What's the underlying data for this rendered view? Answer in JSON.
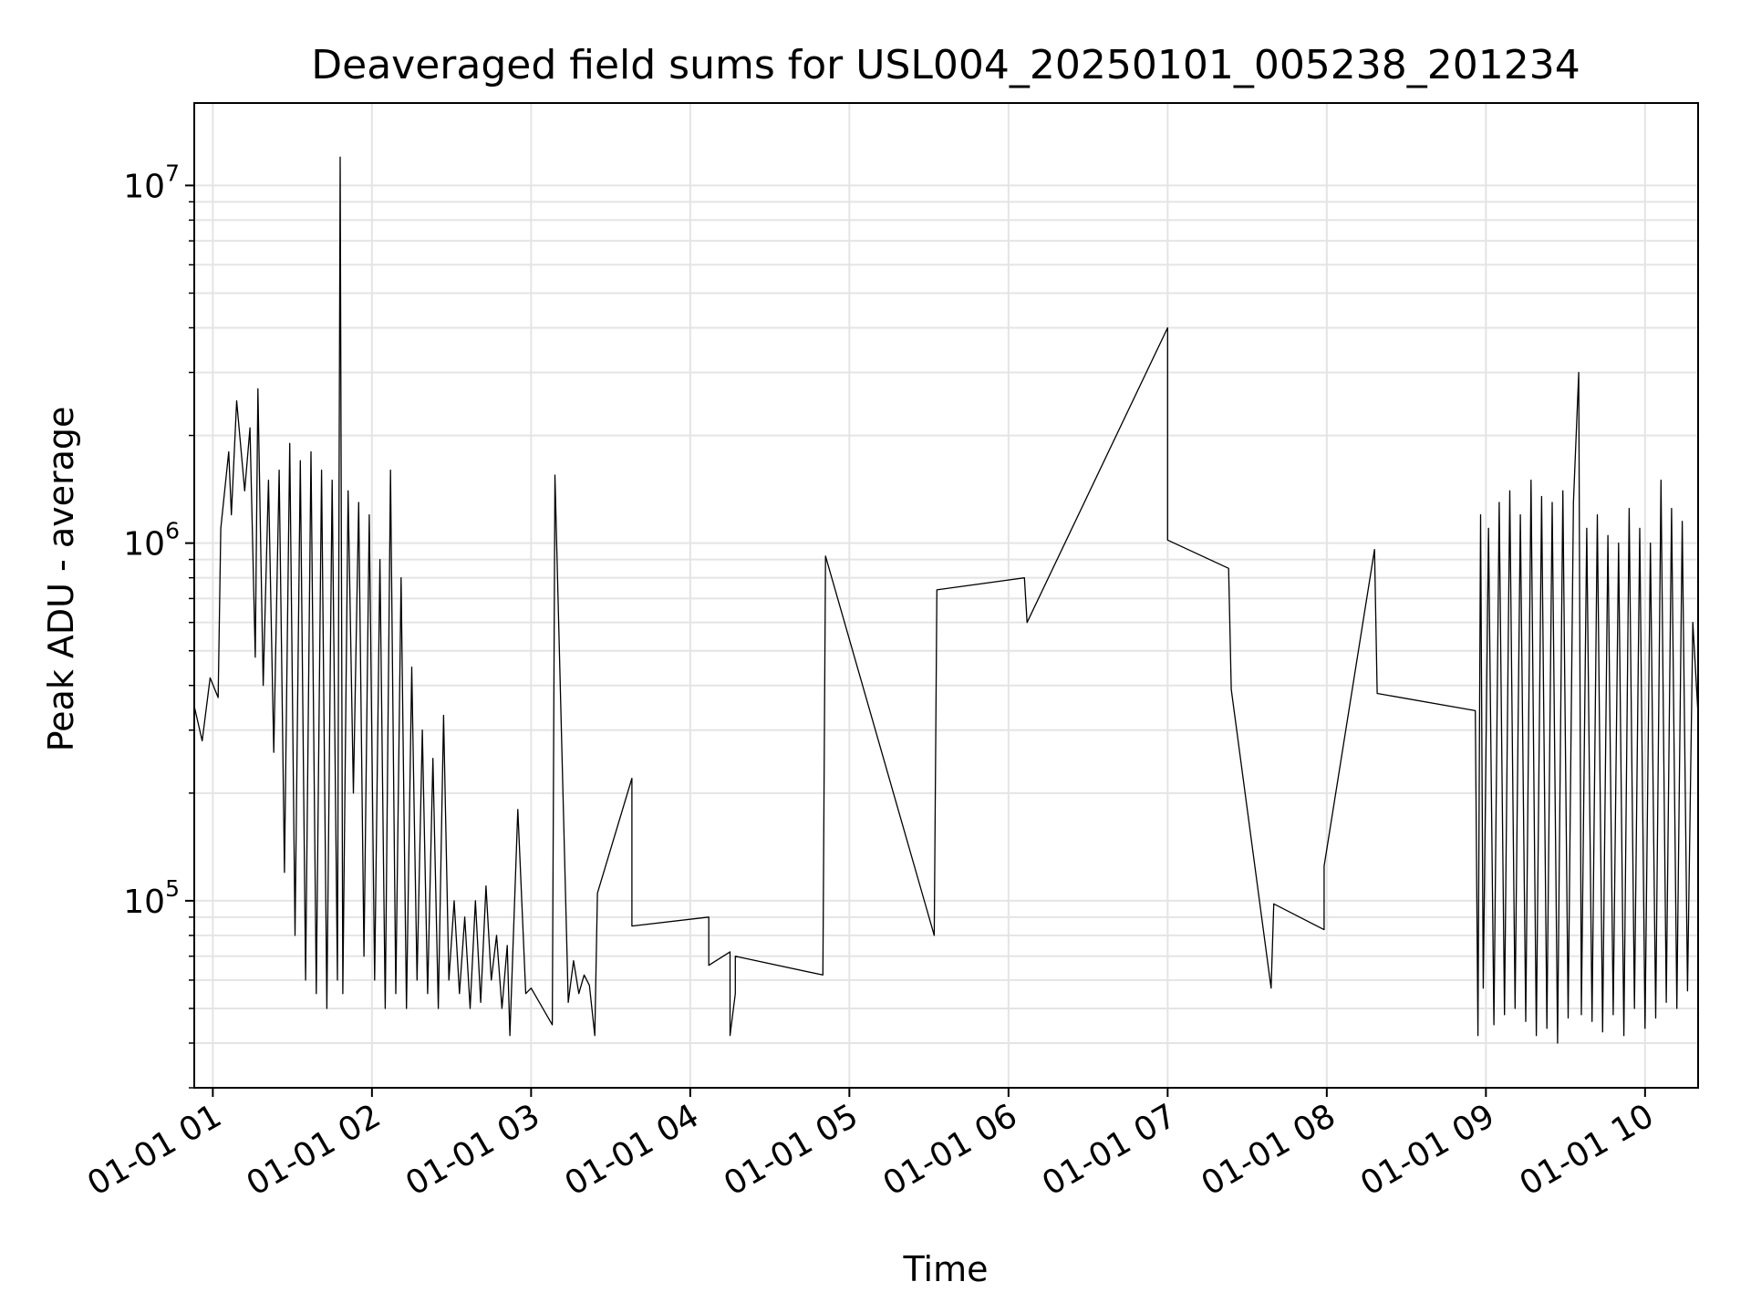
{
  "chart_data": {
    "type": "line",
    "title": "Deaveraged field sums for USL004_20250101_005238_201234",
    "xlabel": "Time",
    "ylabel": "Peak ADU - average",
    "y_scale": "log",
    "grid": true,
    "xlim": [
      "2025-01-01 00:53",
      "2025-01-01 10:20"
    ],
    "ylim": [
      30000,
      17000000
    ],
    "x_ticks": [
      "01-01 01",
      "01-01 02",
      "01-01 03",
      "01-01 04",
      "01-01 05",
      "01-01 06",
      "01-01 07",
      "01-01 08",
      "01-01 09",
      "01-01 10"
    ],
    "y_ticks": [
      {
        "base": "10",
        "exp": "5",
        "value": 100000
      },
      {
        "base": "10",
        "exp": "6",
        "value": 1000000
      },
      {
        "base": "10",
        "exp": "7",
        "value": 10000000
      }
    ],
    "line_color": "#000000",
    "series": [
      {
        "x": [
          "2025-01-01 00:53",
          "2025-01-01 00:56",
          "2025-01-01 00:59",
          "2025-01-01 01:02",
          "2025-01-01 01:03",
          "2025-01-01 01:06",
          "2025-01-01 01:07",
          "2025-01-01 01:09",
          "2025-01-01 01:12",
          "2025-01-01 01:14",
          "2025-01-01 01:16",
          "2025-01-01 01:17",
          "2025-01-01 01:19",
          "2025-01-01 01:21",
          "2025-01-01 01:23",
          "2025-01-01 01:25",
          "2025-01-01 01:27",
          "2025-01-01 01:29",
          "2025-01-01 01:31",
          "2025-01-01 01:33",
          "2025-01-01 01:35",
          "2025-01-01 01:37",
          "2025-01-01 01:39",
          "2025-01-01 01:41",
          "2025-01-01 01:43",
          "2025-01-01 01:45",
          "2025-01-01 01:47",
          "2025-01-01 01:48",
          "2025-01-01 01:49",
          "2025-01-01 01:51",
          "2025-01-01 01:53",
          "2025-01-01 01:55",
          "2025-01-01 01:57",
          "2025-01-01 01:59",
          "2025-01-01 02:01",
          "2025-01-01 02:03",
          "2025-01-01 02:05",
          "2025-01-01 02:07",
          "2025-01-01 02:09",
          "2025-01-01 02:11",
          "2025-01-01 02:13",
          "2025-01-01 02:15",
          "2025-01-01 02:17",
          "2025-01-01 02:19",
          "2025-01-01 02:21",
          "2025-01-01 02:23",
          "2025-01-01 02:25",
          "2025-01-01 02:27",
          "2025-01-01 02:29",
          "2025-01-01 02:31",
          "2025-01-01 02:33",
          "2025-01-01 02:35",
          "2025-01-01 02:37",
          "2025-01-01 02:39",
          "2025-01-01 02:41",
          "2025-01-01 02:43",
          "2025-01-01 02:45",
          "2025-01-01 02:47",
          "2025-01-01 02:49",
          "2025-01-01 02:51",
          "2025-01-01 02:52",
          "2025-01-01 02:55",
          "2025-01-01 02:58",
          "2025-01-01 03:00",
          "2025-01-01 03:08",
          "2025-01-01 03:09",
          "2025-01-01 03:14",
          "2025-01-01 03:16",
          "2025-01-01 03:18",
          "2025-01-01 03:20",
          "2025-01-01 03:22",
          "2025-01-01 03:24",
          "2025-01-01 03:25",
          "2025-01-01 03:38",
          "2025-01-01 03:38",
          "2025-01-01 04:07",
          "2025-01-01 04:07",
          "2025-01-01 04:15",
          "2025-01-01 04:15",
          "2025-01-01 04:17",
          "2025-01-01 04:17",
          "2025-01-01 04:50",
          "2025-01-01 04:51",
          "2025-01-01 05:32",
          "2025-01-01 05:33",
          "2025-01-01 06:06",
          "2025-01-01 06:07",
          "2025-01-01 07:00",
          "2025-01-01 07:00",
          "2025-01-01 07:23",
          "2025-01-01 07:24",
          "2025-01-01 07:39",
          "2025-01-01 07:40",
          "2025-01-01 07:59",
          "2025-01-01 07:59",
          "2025-01-01 08:18",
          "2025-01-01 08:19",
          "2025-01-01 08:56",
          "2025-01-01 08:57",
          "2025-01-01 08:58",
          "2025-01-01 08:59",
          "2025-01-01 09:01",
          "2025-01-01 09:03",
          "2025-01-01 09:05",
          "2025-01-01 09:07",
          "2025-01-01 09:09",
          "2025-01-01 09:11",
          "2025-01-01 09:13",
          "2025-01-01 09:15",
          "2025-01-01 09:17",
          "2025-01-01 09:19",
          "2025-01-01 09:21",
          "2025-01-01 09:23",
          "2025-01-01 09:25",
          "2025-01-01 09:27",
          "2025-01-01 09:29",
          "2025-01-01 09:31",
          "2025-01-01 09:33",
          "2025-01-01 09:35",
          "2025-01-01 09:36",
          "2025-01-01 09:38",
          "2025-01-01 09:40",
          "2025-01-01 09:42",
          "2025-01-01 09:44",
          "2025-01-01 09:46",
          "2025-01-01 09:48",
          "2025-01-01 09:50",
          "2025-01-01 09:52",
          "2025-01-01 09:54",
          "2025-01-01 09:56",
          "2025-01-01 09:58",
          "2025-01-01 10:00",
          "2025-01-01 10:02",
          "2025-01-01 10:04",
          "2025-01-01 10:06",
          "2025-01-01 10:08",
          "2025-01-01 10:10",
          "2025-01-01 10:12",
          "2025-01-01 10:14",
          "2025-01-01 10:16",
          "2025-01-01 10:18",
          "2025-01-01 10:20"
        ],
        "y": [
          350000,
          280000,
          420000,
          370000,
          1100000,
          1800000,
          1200000,
          2500000,
          1400000,
          2100000,
          480000,
          2700000,
          400000,
          1500000,
          260000,
          1600000,
          120000,
          1900000,
          80000,
          1700000,
          60000,
          1800000,
          55000,
          1600000,
          50000,
          1500000,
          60000,
          12000000,
          55000,
          1400000,
          200000,
          1300000,
          70000,
          1200000,
          60000,
          900000,
          50000,
          1600000,
          55000,
          800000,
          50000,
          450000,
          60000,
          300000,
          55000,
          250000,
          50000,
          330000,
          60000,
          100000,
          55000,
          90000,
          50000,
          100000,
          52000,
          110000,
          60000,
          80000,
          50000,
          75000,
          42000,
          180000,
          55000,
          57000,
          45000,
          1550000,
          52000,
          68000,
          55000,
          62000,
          58000,
          42000,
          105000,
          220000,
          85000,
          90000,
          66000,
          72000,
          42000,
          55000,
          70000,
          62000,
          920000,
          80000,
          740000,
          800000,
          600000,
          4000000,
          1020000,
          850000,
          390000,
          57000,
          98000,
          83000,
          125000,
          960000,
          380000,
          340000,
          42000,
          1200000,
          57000,
          1100000,
          45000,
          1300000,
          48000,
          1400000,
          50000,
          1200000,
          46000,
          1500000,
          42000,
          1350000,
          44000,
          1300000,
          40000,
          1400000,
          47000,
          1300000,
          3000000,
          48000,
          1100000,
          46000,
          1200000,
          43000,
          1050000,
          48000,
          1000000,
          42000,
          1250000,
          50000,
          1100000,
          44000,
          1000000,
          47000,
          1500000,
          52000,
          1250000,
          50000,
          1150000,
          56000,
          600000,
          330000
        ]
      }
    ]
  }
}
